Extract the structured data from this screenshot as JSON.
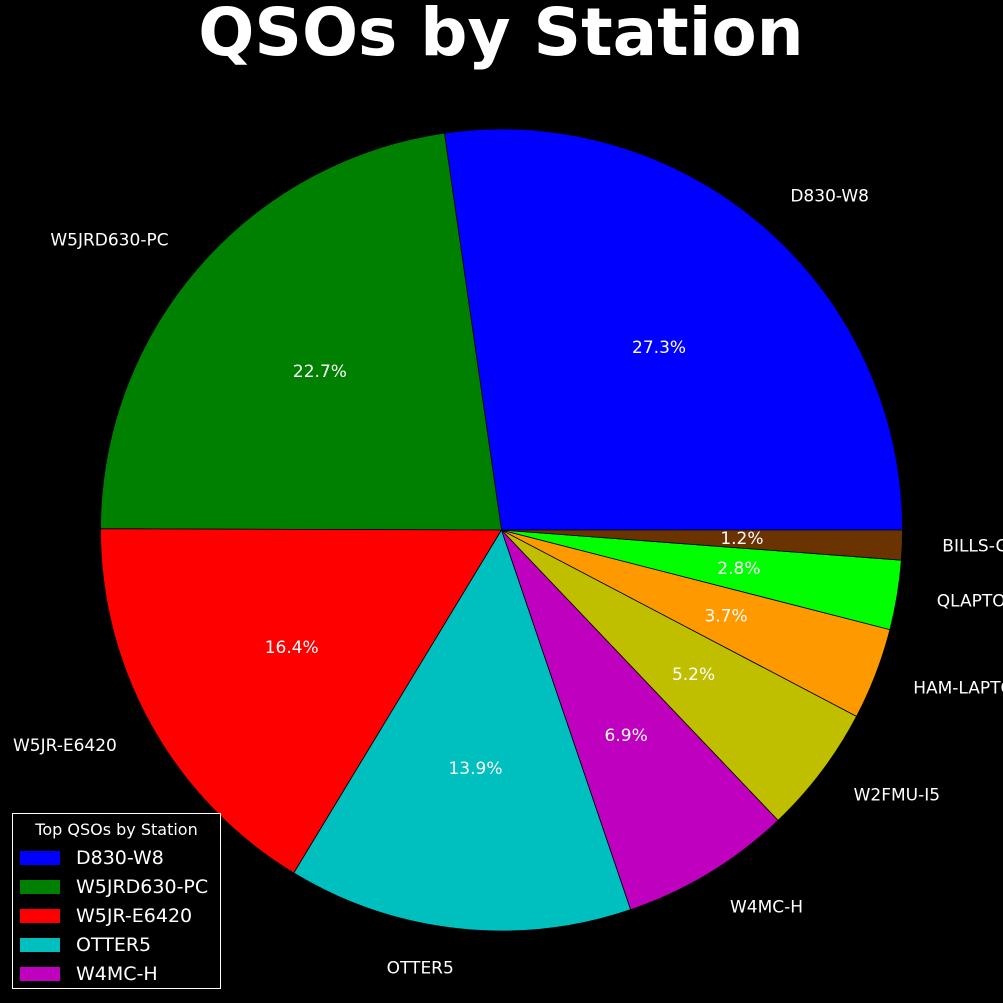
{
  "chart_data": {
    "type": "pie",
    "title": "QSOs by Station",
    "categories": [
      "D830-W8",
      "W5JRD630-PC",
      "W5JR-E6420",
      "OTTER5",
      "W4MC-H",
      "W2FMU-I5",
      "HAM-LAPTOP",
      "QLAPTOP",
      "BILLS-G"
    ],
    "values": [
      27.3,
      22.7,
      16.4,
      13.9,
      6.9,
      5.2,
      3.7,
      2.8,
      1.2
    ],
    "value_labels": [
      "27.3%",
      "22.7%",
      "16.4%",
      "13.9%",
      "6.9%",
      "5.2%",
      "3.7%",
      "2.8%",
      "1.2%"
    ],
    "colors": [
      "#0000ff",
      "#008000",
      "#ff0000",
      "#00bfbf",
      "#bf00bf",
      "#bfbf00",
      "#ff9900",
      "#00ff00",
      "#6b3300"
    ],
    "start_angle_deg": 0,
    "direction": "counterclockwise",
    "legend": {
      "title": "Top QSOs by Station",
      "placement": "bottom-left",
      "entries": [
        "D830-W8",
        "W5JRD630-PC",
        "W5JR-E6420",
        "OTTER5",
        "W4MC-H"
      ]
    }
  }
}
